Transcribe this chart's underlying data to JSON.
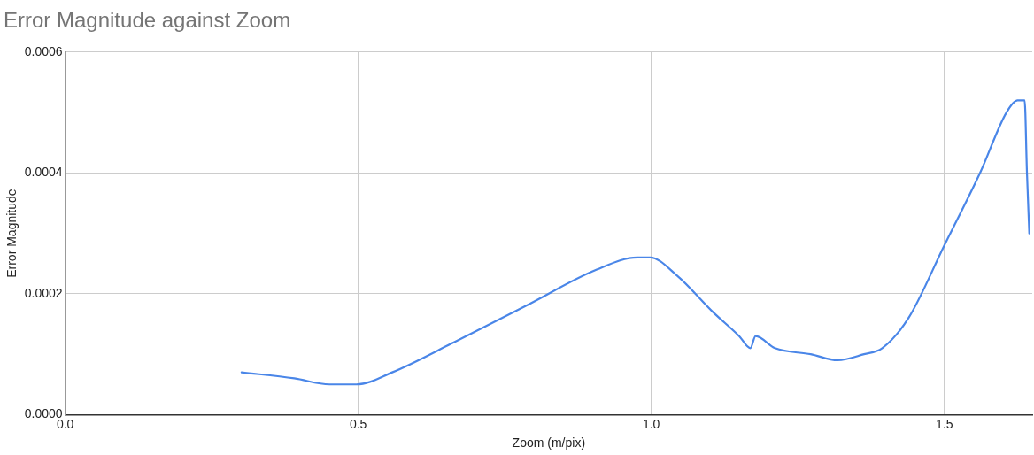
{
  "chart_data": {
    "type": "line",
    "title": "Error Magnitude against Zoom",
    "xlabel": "Zoom (m/pix)",
    "ylabel": "Error Magnitude",
    "x": [
      0.301,
      0.391,
      0.451,
      0.497,
      0.558,
      0.664,
      0.786,
      0.907,
      0.976,
      0.998,
      1.044,
      1.105,
      1.15,
      1.169,
      1.178,
      1.211,
      1.272,
      1.318,
      1.363,
      1.394,
      1.439,
      1.5,
      1.561,
      1.606,
      1.625,
      1.637,
      1.641,
      1.645
    ],
    "series": [
      {
        "color": "#4a86e8",
        "values": [
          7e-05,
          6e-05,
          5e-05,
          5e-05,
          7e-05,
          0.00012,
          0.00018,
          0.00024,
          0.00026,
          0.00026,
          0.00023,
          0.00017,
          0.00013,
          0.00011,
          0.00013,
          0.00011,
          0.0001,
          9e-05,
          0.0001,
          0.00011,
          0.00016,
          0.00028,
          0.0004,
          0.0005,
          0.00052,
          0.00052,
          0.0004,
          0.0003
        ]
      }
    ],
    "xlim": [
      0,
      1.65
    ],
    "xticks": [
      {
        "value": 0,
        "label": "0.0"
      },
      {
        "value": 0.5,
        "label": "0.5"
      },
      {
        "value": 1,
        "label": "1.0"
      },
      {
        "value": 1.5,
        "label": "1.5"
      }
    ],
    "ylim": [
      0,
      0.0006
    ],
    "yticks": [
      {
        "value": 0,
        "label": "0.0000"
      },
      {
        "value": 0.0002,
        "label": "0.0002"
      },
      {
        "value": 0.0004,
        "label": "0.0004"
      },
      {
        "value": 0.0006,
        "label": "0.0006"
      }
    ],
    "grid": true,
    "legend": false,
    "marker": "none",
    "line_style": "solid"
  }
}
